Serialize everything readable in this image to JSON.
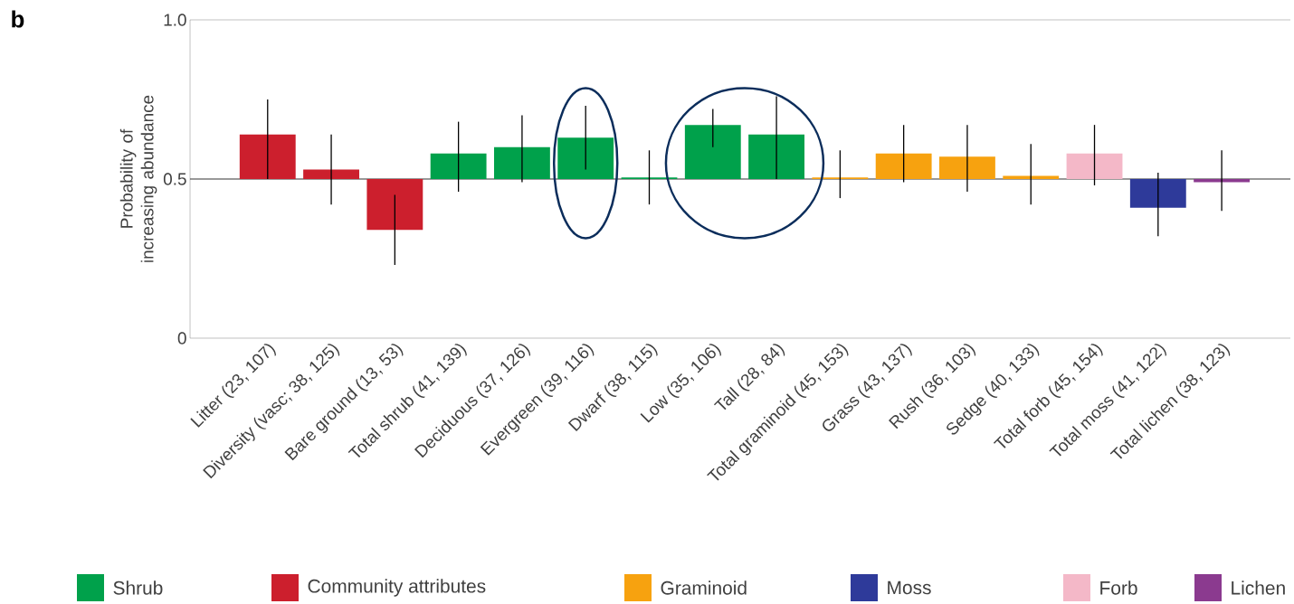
{
  "chart_data": {
    "type": "bar",
    "ylabel": "Probability of increasing abundance",
    "annotations": [
      "b"
    ],
    "categories": [
      "Litter (23, 107)",
      "Diversity (vasc; 38, 125)",
      "Bare ground (13, 53)",
      "Total shrub (41, 139)",
      "Deciduous (37, 126)",
      "Evergreen (39, 116)",
      "Dwarf (38, 115)",
      "Low (35, 106)",
      "Tall (28, 84)",
      "Total graminoid (45, 153)",
      "Grass (43, 137)",
      "Rush (36, 103)",
      "Sedge (40, 133)",
      "Total forb (45, 154)",
      "Total moss (41, 122)",
      "Total lichen (38, 123)"
    ],
    "series": [
      {
        "name": "Shrub",
        "color": "#00a14b",
        "base": [
          null,
          null,
          null,
          0.5,
          0.5,
          0.5,
          0.5,
          0.5,
          0.5,
          null,
          null,
          null,
          null,
          null,
          null,
          null
        ],
        "values": [
          null,
          null,
          null,
          0.08,
          0.1,
          0.13,
          0.005,
          0.17,
          0.14,
          null,
          null,
          null,
          null,
          null,
          null,
          null
        ],
        "errors": [
          null,
          null,
          null,
          [
            0.46,
            0.68
          ],
          [
            0.49,
            0.7
          ],
          [
            0.53,
            0.73
          ],
          [
            0.42,
            0.59
          ],
          [
            0.6,
            0.72
          ],
          [
            0.5,
            0.76
          ],
          null,
          null,
          null,
          null,
          null,
          null,
          null
        ]
      },
      {
        "name": "Community attributes",
        "color": "#cc1f2d",
        "base": [
          0.5,
          0.5,
          0.5,
          null,
          null,
          null,
          null,
          null,
          null,
          null,
          null,
          null,
          null,
          null,
          null,
          null
        ],
        "values": [
          0.14,
          0.03,
          -0.16,
          null,
          null,
          null,
          null,
          null,
          null,
          null,
          null,
          null,
          null,
          null,
          null,
          null
        ],
        "errors": [
          [
            0.5,
            0.75
          ],
          [
            0.42,
            0.64
          ],
          [
            0.23,
            0.45
          ],
          null,
          null,
          null,
          null,
          null,
          null,
          null,
          null,
          null,
          null,
          null,
          null,
          null
        ]
      },
      {
        "name": "Graminoid",
        "color": "#f7a20f",
        "base": [
          null,
          null,
          null,
          null,
          null,
          null,
          null,
          null,
          null,
          0.5,
          0.5,
          0.5,
          0.5,
          null,
          null,
          null
        ],
        "values": [
          null,
          null,
          null,
          null,
          null,
          null,
          null,
          null,
          null,
          0.005,
          0.08,
          0.07,
          0.01,
          null,
          null,
          null
        ],
        "errors": [
          null,
          null,
          null,
          null,
          null,
          null,
          null,
          null,
          null,
          [
            0.44,
            0.59
          ],
          [
            0.49,
            0.67
          ],
          [
            0.46,
            0.67
          ],
          [
            0.42,
            0.61
          ],
          null,
          null,
          null
        ]
      },
      {
        "name": "Moss",
        "color": "#2e3a9a",
        "base": [
          null,
          null,
          null,
          null,
          null,
          null,
          null,
          null,
          null,
          null,
          null,
          null,
          null,
          null,
          0.5,
          null
        ],
        "values": [
          null,
          null,
          null,
          null,
          null,
          null,
          null,
          null,
          null,
          null,
          null,
          null,
          null,
          null,
          -0.09,
          null
        ],
        "errors": [
          null,
          null,
          null,
          null,
          null,
          null,
          null,
          null,
          null,
          null,
          null,
          null,
          null,
          null,
          [
            0.32,
            0.52
          ],
          null
        ]
      },
      {
        "name": "Forb",
        "color": "#f4b8c8",
        "base": [
          null,
          null,
          null,
          null,
          null,
          null,
          null,
          null,
          null,
          null,
          null,
          null,
          null,
          0.5,
          null,
          null
        ],
        "values": [
          null,
          null,
          null,
          null,
          null,
          null,
          null,
          null,
          null,
          null,
          null,
          null,
          null,
          0.08,
          null,
          null
        ],
        "errors": [
          null,
          null,
          null,
          null,
          null,
          null,
          null,
          null,
          null,
          null,
          null,
          null,
          null,
          [
            0.48,
            0.67
          ],
          null,
          null
        ]
      },
      {
        "name": "Lichen",
        "color": "#8b3a8f",
        "base": [
          null,
          null,
          null,
          null,
          null,
          null,
          null,
          null,
          null,
          null,
          null,
          null,
          null,
          null,
          null,
          0.5
        ],
        "values": [
          null,
          null,
          null,
          null,
          null,
          null,
          null,
          null,
          null,
          null,
          null,
          null,
          null,
          null,
          null,
          -0.01
        ],
        "errors": [
          null,
          null,
          null,
          null,
          null,
          null,
          null,
          null,
          null,
          null,
          null,
          null,
          null,
          null,
          null,
          [
            0.4,
            0.59
          ]
        ]
      }
    ],
    "ylim": [
      0,
      1
    ],
    "yticks": [
      0,
      0.5,
      {
        "value": 1,
        "label": "1.0"
      }
    ],
    "ref_lines": [
      {
        "axis": "y",
        "value": 0.5
      }
    ],
    "legend": "bottom"
  }
}
